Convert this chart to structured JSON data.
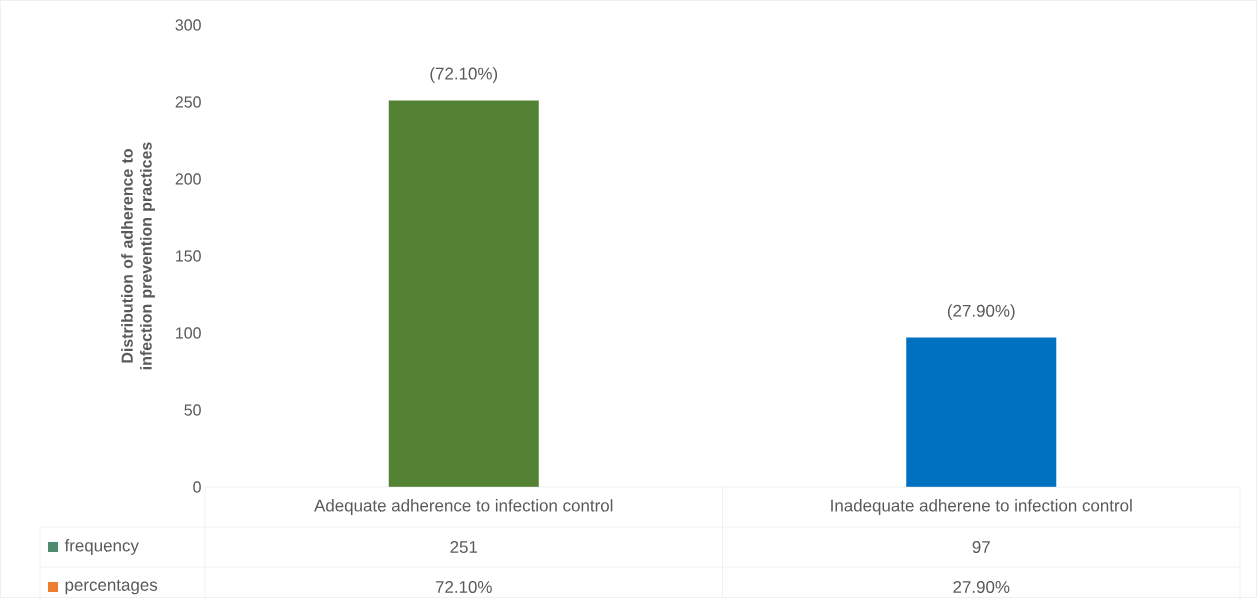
{
  "chart_data": {
    "type": "bar",
    "ylabel": "Distribution of adherence  to infection prevention  practices",
    "categories": [
      "Adequate adherence to infection control",
      "Inadequate adherene to infection control"
    ],
    "series": [
      {
        "name": "frequency",
        "color": "#4e8c6f",
        "colors": [
          "#548235",
          "#0070c0"
        ],
        "values": [
          251,
          97
        ]
      }
    ],
    "annotations": [
      {
        "text": "(72.10%)",
        "x": "Adequate adherence to infection control",
        "y": 251
      },
      {
        "text": "(27.90%)",
        "x": "Inadequate adherene to infection control",
        "y": 97
      },
      "251",
      "97",
      "percentages",
      "72.10%",
      "27.90%"
    ],
    "ylim": [
      0,
      300
    ],
    "yticks": [
      0,
      50,
      100,
      150,
      200,
      250,
      300
    ]
  }
}
